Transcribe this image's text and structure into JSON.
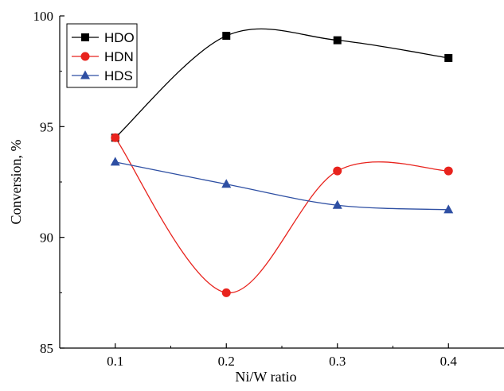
{
  "chart_data": {
    "type": "line",
    "title": "",
    "xlabel": "Ni/W ratio",
    "ylabel": "Conversion, %",
    "x": [
      0.1,
      0.2,
      0.3,
      0.4
    ],
    "x_ticks": [
      "0.1",
      "0.2",
      "0.3",
      "0.4"
    ],
    "y_ticks": [
      "85",
      "90",
      "95",
      "100"
    ],
    "xlim": [
      0.05,
      0.45
    ],
    "ylim": [
      85,
      100
    ],
    "grid": false,
    "legend_position": "top-left",
    "series": [
      {
        "name": "HDO",
        "values": [
          94.5,
          99.1,
          98.9,
          98.1
        ],
        "color": "#000000",
        "marker": "square"
      },
      {
        "name": "HDN",
        "values": [
          94.5,
          87.5,
          93.0,
          93.0
        ],
        "color": "#e8231d",
        "marker": "circle"
      },
      {
        "name": "HDS",
        "values": [
          93.4,
          92.4,
          91.45,
          91.25
        ],
        "color": "#2e4fa3",
        "marker": "triangle"
      }
    ]
  }
}
